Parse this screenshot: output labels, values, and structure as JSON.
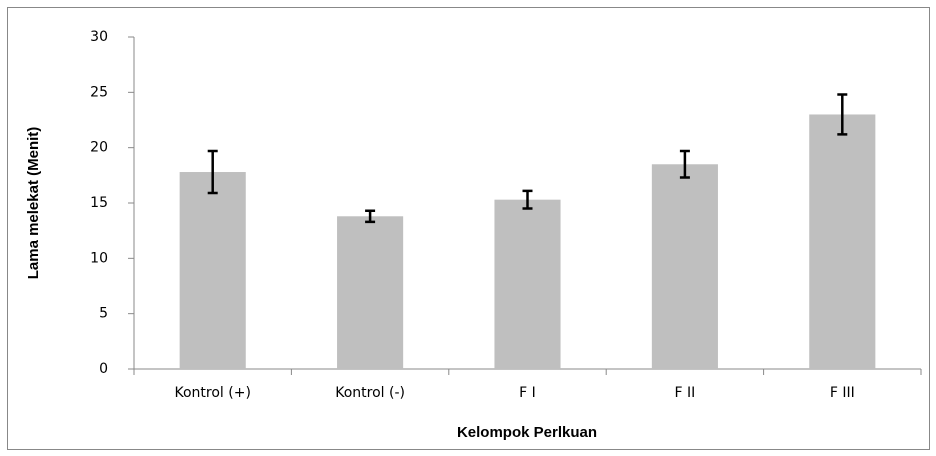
{
  "chart_data": {
    "type": "bar",
    "xlabel": "Kelompok Perlkuan",
    "ylabel": "Lama melekat (Menit)",
    "categories": [
      "Kontrol (+)",
      "Kontrol (-)",
      "F I",
      "F II",
      "F III"
    ],
    "values": [
      17.8,
      13.8,
      15.3,
      18.5,
      23.0
    ],
    "errors": [
      1.9,
      0.5,
      0.8,
      1.2,
      1.8
    ],
    "color": "#bfbfbf",
    "ylim": [
      0,
      30
    ],
    "yticks": [
      0,
      5,
      10,
      15,
      20,
      25,
      30
    ],
    "grid": false
  }
}
